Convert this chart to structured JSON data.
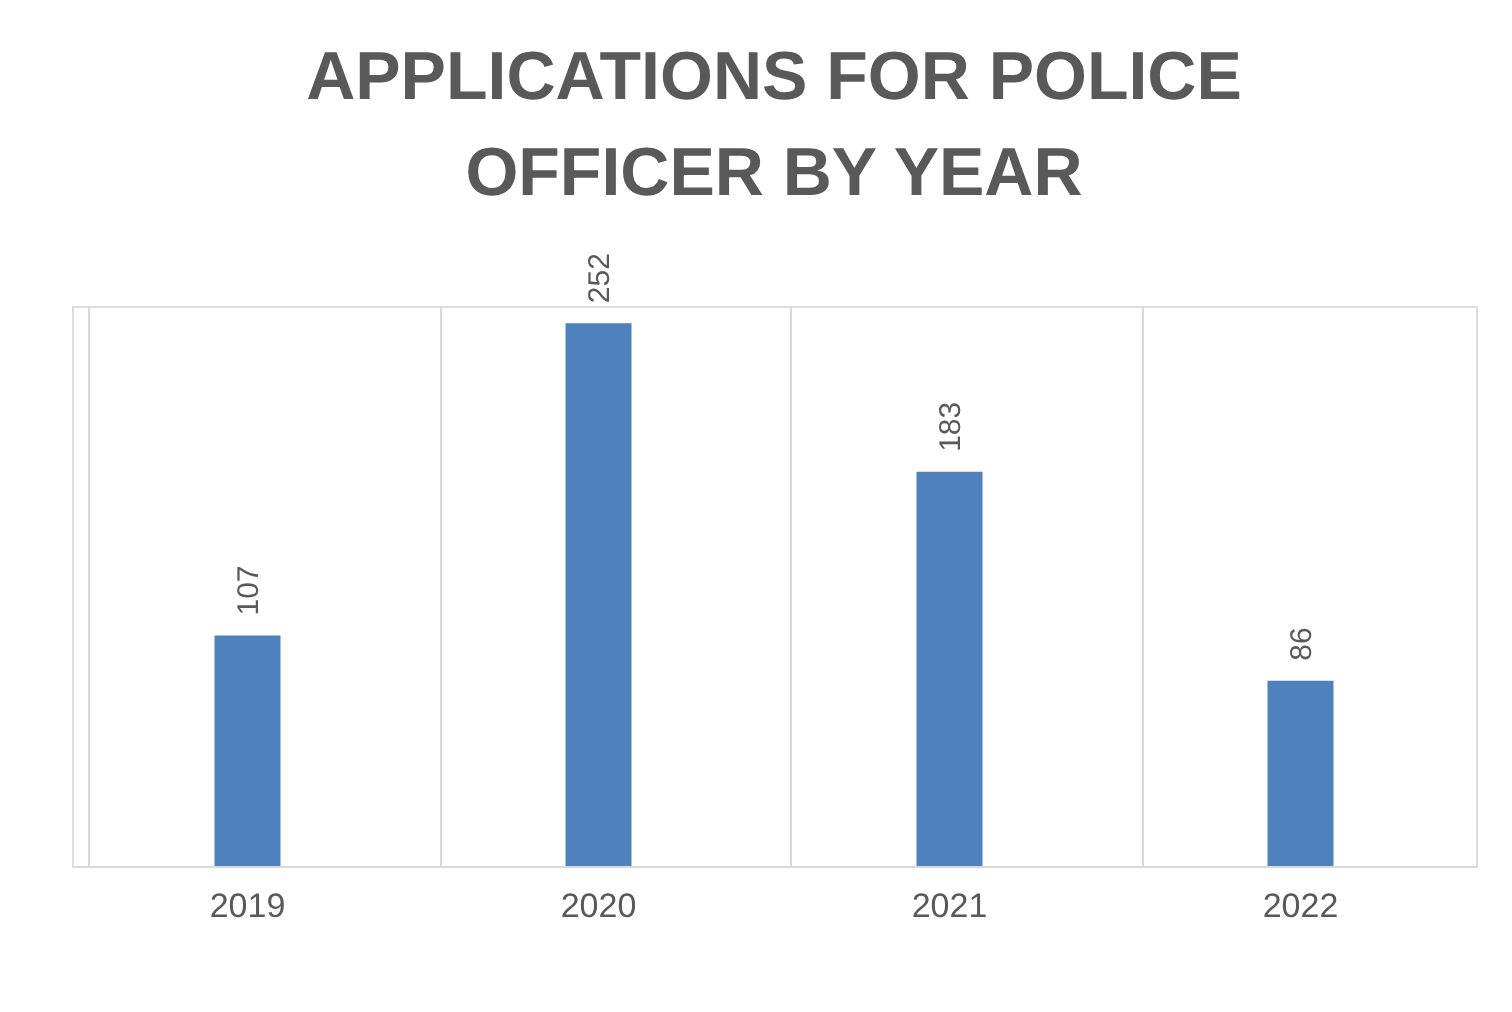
{
  "chart_data": {
    "type": "bar",
    "title": "APPLICATIONS FOR POLICE OFFICER BY YEAR",
    "categories": [
      "2019",
      "2020",
      "2021",
      "2022"
    ],
    "values": [
      107,
      252,
      183,
      86
    ],
    "color": "#4f81bd",
    "data_labels": true,
    "grid": "x"
  }
}
